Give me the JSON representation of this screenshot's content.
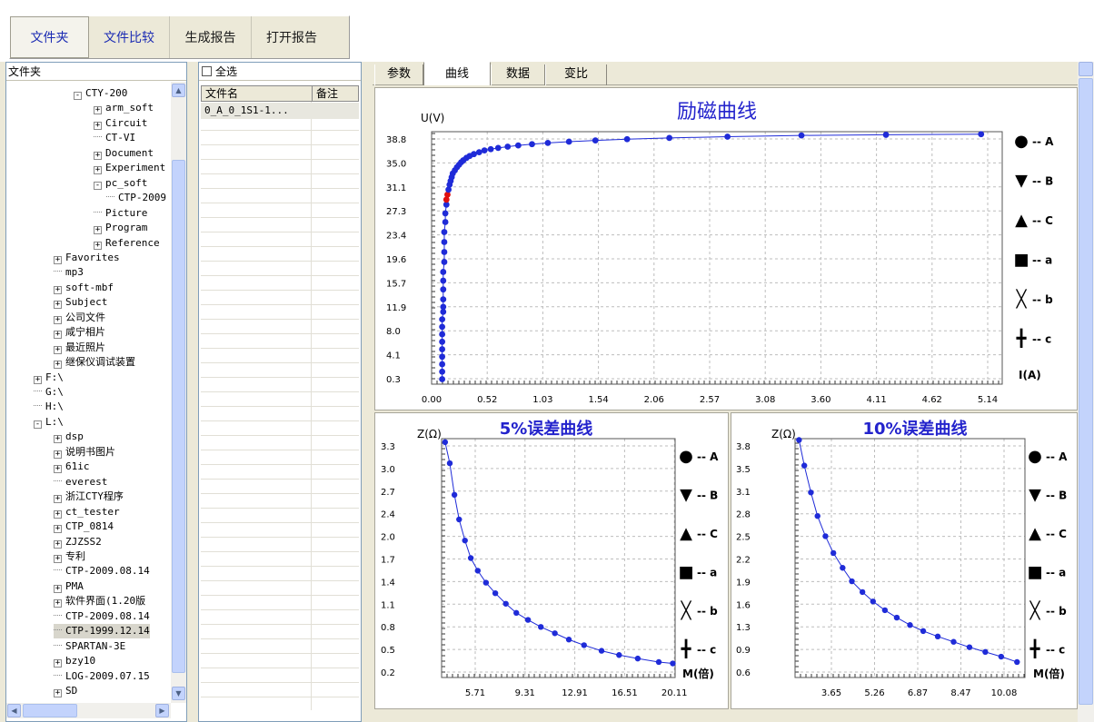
{
  "toolbar": {
    "buttons": [
      "文件夹",
      "文件比较",
      "生成报告",
      "打开报告"
    ]
  },
  "tree": {
    "header": "文件夹",
    "items": [
      {
        "label": "CTY-200",
        "depth": 2,
        "mark": "-"
      },
      {
        "label": "arm_soft",
        "depth": 3,
        "mark": "+"
      },
      {
        "label": "Circuit",
        "depth": 3,
        "mark": "+"
      },
      {
        "label": "CT-VI",
        "depth": 3,
        "mark": ""
      },
      {
        "label": "Document",
        "depth": 3,
        "mark": "+"
      },
      {
        "label": "Experiment",
        "depth": 3,
        "mark": "+"
      },
      {
        "label": "pc_soft",
        "depth": 3,
        "mark": "-"
      },
      {
        "label": "CTP-2009",
        "depth": 4,
        "mark": ""
      },
      {
        "label": "Picture",
        "depth": 3,
        "mark": ""
      },
      {
        "label": "Program",
        "depth": 3,
        "mark": "+"
      },
      {
        "label": "Reference",
        "depth": 3,
        "mark": "+"
      },
      {
        "label": "Favorites",
        "depth": 1,
        "mark": "+"
      },
      {
        "label": "mp3",
        "depth": 1,
        "mark": ""
      },
      {
        "label": "soft-mbf",
        "depth": 1,
        "mark": "+"
      },
      {
        "label": "Subject",
        "depth": 1,
        "mark": "+"
      },
      {
        "label": "公司文件",
        "depth": 1,
        "mark": "+"
      },
      {
        "label": "咸宁相片",
        "depth": 1,
        "mark": "+"
      },
      {
        "label": "最近照片",
        "depth": 1,
        "mark": "+"
      },
      {
        "label": "继保仪调试装置",
        "depth": 1,
        "mark": "+"
      },
      {
        "label": "F:\\",
        "depth": 0,
        "mark": "+"
      },
      {
        "label": "G:\\",
        "depth": 0,
        "mark": ""
      },
      {
        "label": "H:\\",
        "depth": 0,
        "mark": ""
      },
      {
        "label": "L:\\",
        "depth": 0,
        "mark": "-"
      },
      {
        "label": "dsp",
        "depth": 1,
        "mark": "+"
      },
      {
        "label": "说明书图片",
        "depth": 1,
        "mark": "+"
      },
      {
        "label": "61ic",
        "depth": 1,
        "mark": "+"
      },
      {
        "label": "everest",
        "depth": 1,
        "mark": ""
      },
      {
        "label": "浙江CTY程序",
        "depth": 1,
        "mark": "+"
      },
      {
        "label": "ct_tester",
        "depth": 1,
        "mark": "+"
      },
      {
        "label": "CTP_0814",
        "depth": 1,
        "mark": "+"
      },
      {
        "label": "ZJZSS2",
        "depth": 1,
        "mark": "+"
      },
      {
        "label": "专利",
        "depth": 1,
        "mark": "+"
      },
      {
        "label": "CTP-2009.08.14",
        "depth": 1,
        "mark": ""
      },
      {
        "label": "PMA",
        "depth": 1,
        "mark": "+"
      },
      {
        "label": "软件界面(1.20版",
        "depth": 1,
        "mark": "+"
      },
      {
        "label": "CTP-2009.08.14",
        "depth": 1,
        "mark": ""
      },
      {
        "label": "CTP-1999.12.14",
        "depth": 1,
        "mark": "",
        "selected": true
      },
      {
        "label": "SPARTAN-3E",
        "depth": 1,
        "mark": ""
      },
      {
        "label": "bzy10",
        "depth": 1,
        "mark": "+"
      },
      {
        "label": "LOG-2009.07.15",
        "depth": 1,
        "mark": ""
      },
      {
        "label": "SD",
        "depth": 1,
        "mark": "+"
      }
    ]
  },
  "files": {
    "select_all": "全选",
    "col_name": "文件名",
    "col_note": "备注",
    "rows": [
      {
        "name": "0_A_0_1S1-1...",
        "note": ""
      }
    ]
  },
  "tabs": [
    "参数",
    "曲线",
    "数据",
    "变比"
  ],
  "active_tab": 1,
  "legend": [
    {
      "marker": "●",
      "label": "-- A"
    },
    {
      "marker": "▼",
      "label": "-- B"
    },
    {
      "marker": "▲",
      "label": "-- C"
    },
    {
      "marker": "■",
      "label": "-- a"
    },
    {
      "marker": "╳",
      "label": "-- b"
    },
    {
      "marker": "╋",
      "label": "-- c"
    }
  ],
  "colors": {
    "series": "#1f2bd8",
    "marker": "#1f2bd8",
    "highlight": "#e01010",
    "title": "#2323cc",
    "grid": "#bdbdbd"
  },
  "chart_data": [
    {
      "type": "scatter",
      "title": "励磁曲线",
      "xlabel": "I(A)",
      "ylabel": "U(V)",
      "xlim": [
        0,
        5.4
      ],
      "ylim": [
        0,
        40.5
      ],
      "xticks": [
        "0.00",
        "0.52",
        "1.03",
        "1.54",
        "2.06",
        "2.57",
        "3.08",
        "3.60",
        "4.11",
        "4.62",
        "5.14"
      ],
      "yticks": [
        "0.3",
        "4.1",
        "8.0",
        "11.9",
        "15.7",
        "19.6",
        "23.4",
        "27.3",
        "31.1",
        "35.0",
        "38.8"
      ],
      "series": [
        {
          "x": [
            0.1,
            0.1,
            0.1,
            0.1,
            0.1,
            0.1,
            0.1,
            0.1,
            0.1,
            0.11,
            0.11,
            0.11,
            0.11,
            0.11,
            0.11,
            0.12,
            0.12,
            0.12,
            0.12,
            0.13,
            0.13,
            0.14,
            0.14,
            0.15,
            0.16,
            0.17,
            0.18,
            0.19,
            0.2,
            0.22,
            0.24,
            0.26,
            0.28,
            0.3,
            0.33,
            0.36,
            0.4,
            0.45,
            0.5,
            0.56,
            0.63,
            0.72,
            0.82,
            0.95,
            1.1,
            1.3,
            1.55,
            1.85,
            2.25,
            2.8,
            3.5,
            4.3,
            5.2
          ],
          "y": [
            0.8,
            2.0,
            3.2,
            4.4,
            5.6,
            6.8,
            8.0,
            9.2,
            10.4,
            11.6,
            12.4,
            13.6,
            15.2,
            16.6,
            18.0,
            19.6,
            21.2,
            22.8,
            24.4,
            26.0,
            27.4,
            28.8,
            29.6,
            30.4,
            31.2,
            32.0,
            32.6,
            33.2,
            33.8,
            34.3,
            34.8,
            35.2,
            35.6,
            35.9,
            36.3,
            36.6,
            36.9,
            37.2,
            37.5,
            37.7,
            37.9,
            38.1,
            38.3,
            38.5,
            38.7,
            38.9,
            39.1,
            39.3,
            39.5,
            39.7,
            39.9,
            40.0,
            40.1
          ],
          "highlight": [
            22,
            23
          ]
        }
      ]
    },
    {
      "type": "scatter",
      "title": "5%误差曲线",
      "xlabel": "M(倍)",
      "ylabel": "Z(Ω)",
      "xlim": [
        2.2,
        22.2
      ],
      "ylim": [
        0.1,
        3.5
      ],
      "xticks": [
        "5.71",
        "9.31",
        "12.91",
        "16.51",
        "20.11"
      ],
      "yticks": [
        "0.2",
        "0.5",
        "0.8",
        "1.1",
        "1.4",
        "1.7",
        "2.0",
        "2.4",
        "2.7",
        "3.0",
        "3.3"
      ],
      "series": [
        {
          "x": [
            2.5,
            2.9,
            3.3,
            3.7,
            4.2,
            4.7,
            5.3,
            6.0,
            6.8,
            7.7,
            8.6,
            9.6,
            10.7,
            11.9,
            13.1,
            14.4,
            15.9,
            17.4,
            19.0,
            20.8,
            22.0
          ],
          "y": [
            3.45,
            3.15,
            2.7,
            2.35,
            2.05,
            1.8,
            1.62,
            1.45,
            1.3,
            1.15,
            1.02,
            0.92,
            0.82,
            0.73,
            0.64,
            0.56,
            0.48,
            0.42,
            0.37,
            0.32,
            0.3
          ]
        }
      ]
    },
    {
      "type": "scatter",
      "title": "10%误差曲线",
      "xlabel": "M(倍)",
      "ylabel": "Z(Ω)",
      "xlim": [
        2.3,
        11.0
      ],
      "ylim": [
        0.45,
        4.0
      ],
      "xticks": [
        "3.65",
        "5.26",
        "6.87",
        "8.47",
        "10.08"
      ],
      "yticks": [
        "0.6",
        "0.9",
        "1.3",
        "1.6",
        "1.9",
        "2.2",
        "2.5",
        "2.8",
        "3.1",
        "3.5",
        "3.8"
      ],
      "series": [
        {
          "x": [
            2.45,
            2.65,
            2.9,
            3.15,
            3.45,
            3.75,
            4.1,
            4.45,
            4.85,
            5.25,
            5.7,
            6.15,
            6.65,
            7.15,
            7.7,
            8.3,
            8.9,
            9.5,
            10.1,
            10.7
          ],
          "y": [
            3.98,
            3.6,
            3.2,
            2.85,
            2.55,
            2.3,
            2.08,
            1.88,
            1.72,
            1.58,
            1.45,
            1.34,
            1.23,
            1.14,
            1.06,
            0.98,
            0.9,
            0.83,
            0.76,
            0.68
          ]
        }
      ]
    }
  ]
}
